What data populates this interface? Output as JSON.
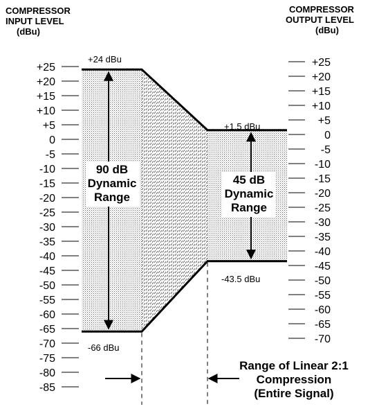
{
  "input_axis": {
    "title_line1": "COMPRESSOR",
    "title_line2": "INPUT LEVEL",
    "unit": "(dBu)",
    "ticks": [
      "+25",
      "+20",
      "+15",
      "+10",
      "+5",
      "0",
      "-5",
      "-10",
      "-15",
      "-20",
      "-25",
      "-30",
      "-35",
      "-40",
      "-45",
      "-50",
      "-55",
      "-60",
      "-65",
      "-70",
      "-75",
      "-80",
      "-85"
    ]
  },
  "output_axis": {
    "title_line1": "COMPRESSOR",
    "title_line2": "OUTPUT LEVEL",
    "unit": "(dBu)",
    "ticks": [
      "+25",
      "+20",
      "+15",
      "+10",
      "+5",
      "0",
      "-5",
      "-10",
      "-15",
      "-20",
      "-25",
      "-30",
      "-35",
      "-40",
      "-45",
      "-50",
      "-55",
      "-60",
      "-65",
      "-70"
    ]
  },
  "input_range": {
    "top_label": "+24 dBu",
    "bottom_label": "-66 dBu",
    "top_dbu": 24,
    "bottom_dbu": -66,
    "range_line1": "90 dB",
    "range_line2": "Dynamic",
    "range_line3": "Range"
  },
  "output_range": {
    "top_label": "+1.5 dBu",
    "bottom_label": "-43.5 dBu",
    "top_dbu": 1.5,
    "bottom_dbu": -43.5,
    "range_line1": "45 dB",
    "range_line2": "Dynamic",
    "range_line3": "Range"
  },
  "compression_note": {
    "line1": "Range of Linear 2:1",
    "line2": "Compression",
    "line3": "(Entire Signal)",
    "ratio": "2:1"
  }
}
